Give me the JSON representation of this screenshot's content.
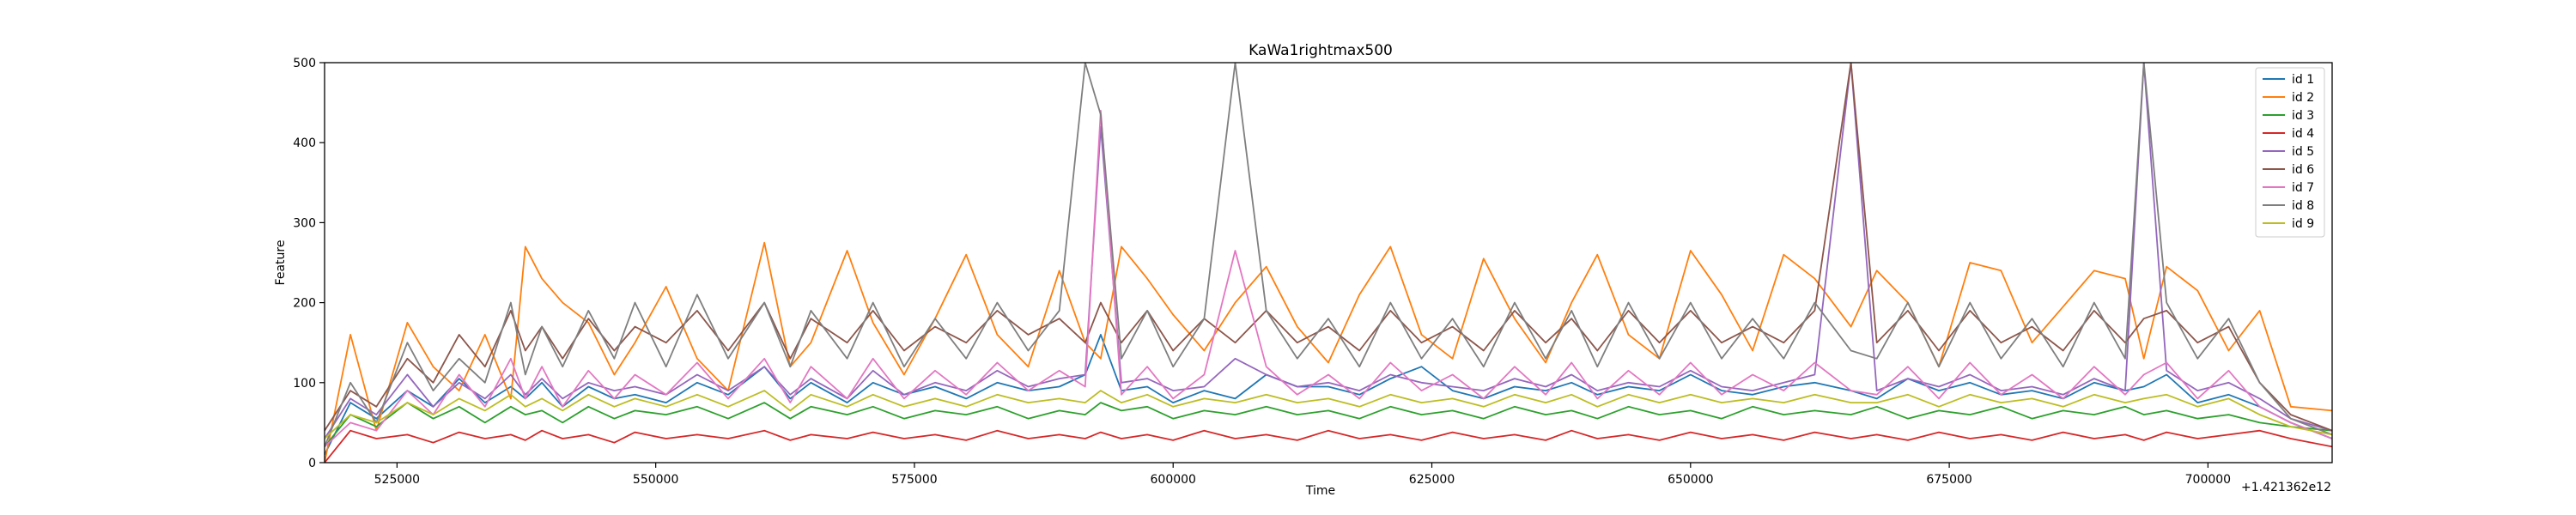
{
  "chart_data": {
    "type": "line",
    "title": "KaWa1rightmax500",
    "xlabel": "Time",
    "ylabel": "Feature",
    "x_offset_label": "+1.421362e12",
    "xlim": [
      518000,
      712000
    ],
    "ylim": [
      0,
      500
    ],
    "x_ticks": [
      525000,
      550000,
      575000,
      600000,
      625000,
      650000,
      675000,
      700000
    ],
    "x_tick_labels": [
      "525000",
      "550000",
      "575000",
      "600000",
      "625000",
      "650000",
      "675000",
      "700000"
    ],
    "y_ticks": [
      0,
      100,
      200,
      300,
      400,
      500
    ],
    "y_tick_labels": [
      "0",
      "100",
      "200",
      "300",
      "400",
      "500"
    ],
    "grid": false,
    "legend_position": "upper right",
    "sampled_x": [
      518000,
      520500,
      523000,
      526000,
      528500,
      531000,
      533500,
      536000,
      537400,
      539000,
      541000,
      543500,
      546000,
      548000,
      551000,
      554000,
      557000,
      560500,
      563000,
      565000,
      568500,
      571000,
      574000,
      577000,
      580000,
      583000,
      586000,
      589000,
      591500,
      593000,
      595000,
      597500,
      600000,
      603000,
      606000,
      609000,
      612000,
      615000,
      618000,
      621000,
      624000,
      627000,
      630000,
      633000,
      636000,
      638500,
      641000,
      644000,
      647000,
      650000,
      653000,
      656000,
      659000,
      662000,
      665500,
      668000,
      671000,
      674000,
      677000,
      680000,
      683000,
      686000,
      689000,
      692000,
      693800,
      696000,
      699000,
      702000,
      705000,
      708000,
      712000
    ],
    "series": [
      {
        "name": "id 1",
        "color": "#1f77b4",
        "values": [
          10,
          75,
          55,
          90,
          70,
          105,
          75,
          95,
          80,
          100,
          70,
          95,
          80,
          85,
          75,
          100,
          85,
          120,
          80,
          100,
          75,
          100,
          85,
          95,
          80,
          100,
          90,
          95,
          110,
          160,
          90,
          95,
          75,
          90,
          80,
          110,
          95,
          95,
          85,
          105,
          120,
          90,
          80,
          95,
          90,
          100,
          85,
          95,
          90,
          110,
          90,
          85,
          95,
          100,
          90,
          80,
          105,
          90,
          100,
          85,
          90,
          80,
          100,
          90,
          95,
          110,
          75,
          85,
          70,
          50,
          30
        ]
      },
      {
        "name": "id 2",
        "color": "#ff7f0e",
        "values": [
          0,
          160,
          40,
          175,
          120,
          90,
          160,
          80,
          270,
          230,
          200,
          175,
          110,
          150,
          220,
          130,
          90,
          275,
          120,
          150,
          265,
          175,
          110,
          180,
          260,
          160,
          120,
          240,
          150,
          130,
          270,
          230,
          185,
          140,
          200,
          245,
          170,
          125,
          210,
          270,
          160,
          130,
          255,
          180,
          125,
          200,
          260,
          160,
          130,
          265,
          210,
          140,
          260,
          230,
          170,
          240,
          200,
          120,
          250,
          240,
          150,
          195,
          240,
          230,
          130,
          245,
          215,
          140,
          190,
          70,
          65
        ]
      },
      {
        "name": "id 3",
        "color": "#2ca02c",
        "values": [
          20,
          60,
          45,
          75,
          55,
          70,
          50,
          70,
          60,
          65,
          50,
          70,
          55,
          65,
          60,
          70,
          55,
          75,
          55,
          70,
          60,
          70,
          55,
          65,
          60,
          70,
          55,
          65,
          60,
          75,
          65,
          70,
          55,
          65,
          60,
          70,
          60,
          65,
          55,
          70,
          60,
          65,
          55,
          70,
          60,
          65,
          55,
          70,
          60,
          65,
          55,
          70,
          60,
          65,
          60,
          70,
          55,
          65,
          60,
          70,
          55,
          65,
          60,
          70,
          60,
          65,
          55,
          60,
          50,
          45,
          40
        ]
      },
      {
        "name": "id 4",
        "color": "#d62728",
        "values": [
          0,
          40,
          30,
          35,
          25,
          38,
          30,
          35,
          28,
          40,
          30,
          35,
          25,
          38,
          30,
          35,
          30,
          40,
          28,
          35,
          30,
          38,
          30,
          35,
          28,
          40,
          30,
          35,
          30,
          38,
          30,
          35,
          28,
          40,
          30,
          35,
          28,
          40,
          30,
          35,
          28,
          38,
          30,
          35,
          28,
          40,
          30,
          35,
          28,
          38,
          30,
          35,
          28,
          38,
          30,
          35,
          28,
          38,
          30,
          35,
          28,
          38,
          30,
          35,
          28,
          38,
          30,
          35,
          40,
          30,
          20
        ]
      },
      {
        "name": "id 5",
        "color": "#9467bd",
        "values": [
          30,
          80,
          60,
          110,
          70,
          100,
          80,
          110,
          85,
          105,
          80,
          100,
          90,
          95,
          85,
          110,
          90,
          120,
          85,
          105,
          80,
          115,
          85,
          100,
          90,
          115,
          95,
          105,
          110,
          420,
          100,
          105,
          90,
          95,
          130,
          110,
          95,
          100,
          90,
          110,
          100,
          95,
          90,
          105,
          95,
          110,
          90,
          100,
          95,
          115,
          95,
          90,
          100,
          110,
          500,
          90,
          105,
          95,
          110,
          90,
          95,
          85,
          105,
          90,
          500,
          115,
          90,
          100,
          80,
          55,
          40
        ]
      },
      {
        "name": "id 6",
        "color": "#8c564b",
        "values": [
          40,
          90,
          70,
          130,
          100,
          160,
          120,
          190,
          140,
          170,
          130,
          180,
          140,
          170,
          150,
          190,
          140,
          200,
          130,
          180,
          150,
          190,
          140,
          170,
          150,
          190,
          160,
          180,
          150,
          200,
          150,
          190,
          140,
          180,
          150,
          190,
          150,
          170,
          140,
          190,
          150,
          170,
          140,
          190,
          150,
          180,
          140,
          190,
          150,
          190,
          150,
          170,
          150,
          190,
          500,
          150,
          190,
          140,
          190,
          150,
          170,
          140,
          190,
          150,
          180,
          190,
          150,
          170,
          100,
          60,
          40
        ]
      },
      {
        "name": "id 7",
        "color": "#e377c2",
        "values": [
          20,
          50,
          40,
          90,
          60,
          110,
          70,
          130,
          80,
          120,
          70,
          115,
          80,
          110,
          85,
          125,
          80,
          130,
          75,
          120,
          80,
          130,
          80,
          115,
          85,
          125,
          90,
          115,
          95,
          440,
          85,
          120,
          80,
          110,
          265,
          120,
          85,
          110,
          80,
          125,
          90,
          110,
          80,
          120,
          85,
          125,
          80,
          115,
          85,
          125,
          85,
          110,
          90,
          125,
          90,
          85,
          120,
          80,
          125,
          85,
          110,
          80,
          120,
          85,
          110,
          125,
          80,
          115,
          70,
          50,
          30
        ]
      },
      {
        "name": "id 8",
        "color": "#7f7f7f",
        "values": [
          20,
          100,
          50,
          150,
          90,
          130,
          100,
          200,
          110,
          170,
          120,
          190,
          130,
          200,
          120,
          210,
          130,
          200,
          120,
          190,
          130,
          200,
          120,
          180,
          130,
          200,
          140,
          190,
          500,
          435,
          130,
          190,
          120,
          180,
          500,
          190,
          130,
          180,
          120,
          200,
          130,
          180,
          120,
          200,
          130,
          190,
          120,
          200,
          130,
          200,
          130,
          180,
          130,
          200,
          140,
          130,
          200,
          120,
          200,
          130,
          180,
          120,
          200,
          130,
          500,
          200,
          130,
          180,
          100,
          55,
          35
        ]
      },
      {
        "name": "id 9",
        "color": "#bcbd22",
        "values": [
          30,
          60,
          50,
          75,
          60,
          80,
          65,
          85,
          70,
          80,
          65,
          85,
          70,
          80,
          70,
          85,
          70,
          90,
          65,
          85,
          70,
          85,
          70,
          80,
          70,
          85,
          75,
          80,
          75,
          90,
          75,
          85,
          70,
          80,
          75,
          85,
          75,
          80,
          70,
          85,
          75,
          80,
          70,
          85,
          75,
          85,
          70,
          85,
          75,
          85,
          75,
          80,
          75,
          85,
          75,
          75,
          85,
          70,
          85,
          75,
          80,
          70,
          85,
          75,
          80,
          85,
          70,
          80,
          60,
          45,
          35
        ]
      }
    ]
  }
}
